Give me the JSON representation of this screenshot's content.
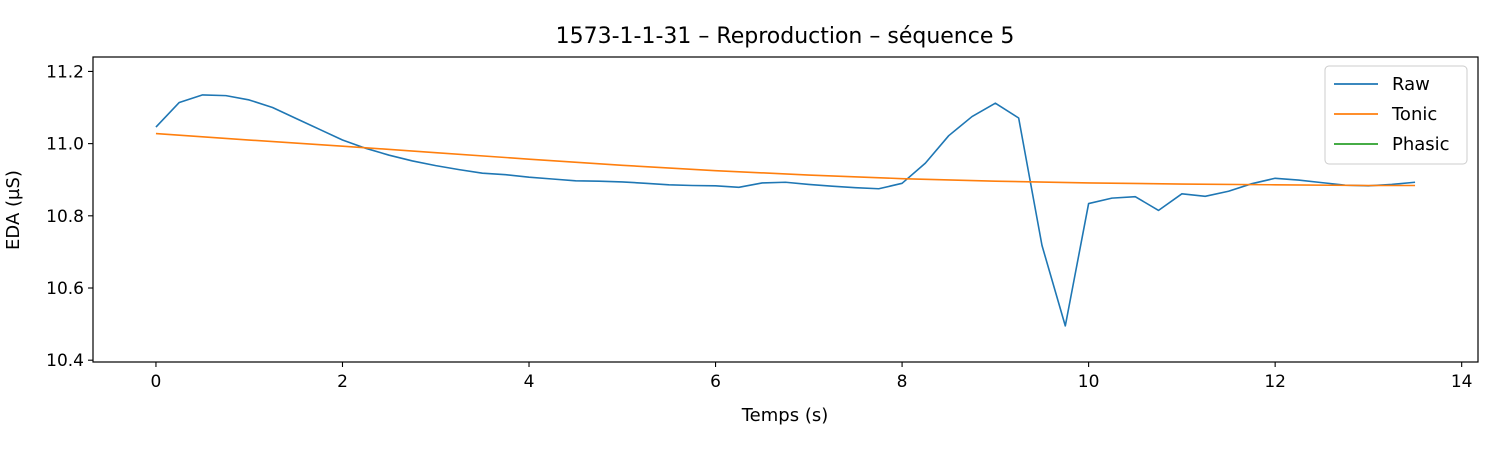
{
  "chart_data": {
    "type": "line",
    "title": "1573-1-1-31 – Reproduction – séquence 5",
    "xlabel": "Temps (s)",
    "ylabel": "EDA (µS)",
    "xlim": [
      -0.675,
      14.175
    ],
    "ylim": [
      10.395,
      11.24
    ],
    "x_ticks": [
      0,
      2,
      4,
      6,
      8,
      10,
      12,
      14
    ],
    "x_tick_labels": [
      "0",
      "2",
      "4",
      "6",
      "8",
      "10",
      "12",
      "14"
    ],
    "y_ticks": [
      10.4,
      10.6,
      10.8,
      11.0,
      11.2
    ],
    "y_tick_labels": [
      "10.4",
      "10.6",
      "10.8",
      "11.0",
      "11.2"
    ],
    "grid": false,
    "legend_position": "top-right",
    "series": [
      {
        "name": "Raw",
        "color": "#1f77b4",
        "x": [
          0,
          0.25,
          0.5,
          0.75,
          1.0,
          1.25,
          1.5,
          1.75,
          2.0,
          2.25,
          2.5,
          2.75,
          3.0,
          3.25,
          3.5,
          3.75,
          4.0,
          4.25,
          4.5,
          4.75,
          5.0,
          5.25,
          5.5,
          5.75,
          6.0,
          6.25,
          6.5,
          6.75,
          7.0,
          7.25,
          7.5,
          7.75,
          8.0,
          8.25,
          8.5,
          8.75,
          9.0,
          9.25,
          9.5,
          9.75,
          10.0,
          10.25,
          10.5,
          10.75,
          11.0,
          11.25,
          11.5,
          11.75,
          12.0,
          12.25,
          12.5,
          12.75,
          13.0,
          13.25,
          13.5
        ],
        "y": [
          11.046,
          11.114,
          11.135,
          11.133,
          11.121,
          11.1,
          11.07,
          11.04,
          11.01,
          10.987,
          10.968,
          10.952,
          10.939,
          10.928,
          10.918,
          10.914,
          10.907,
          10.902,
          10.897,
          10.896,
          10.894,
          10.89,
          10.886,
          10.884,
          10.883,
          10.879,
          10.891,
          10.893,
          10.887,
          10.882,
          10.878,
          10.875,
          10.89,
          10.946,
          11.022,
          11.075,
          11.112,
          11.071,
          10.718,
          10.495,
          10.834,
          10.849,
          10.853,
          10.815,
          10.861,
          10.854,
          10.868,
          10.889,
          10.904,
          10.899,
          10.892,
          10.885,
          10.883,
          10.887,
          10.893
        ]
      },
      {
        "name": "Tonic",
        "color": "#ff7f0e",
        "x": [
          0,
          1,
          2,
          3,
          4,
          5,
          6,
          7,
          8,
          9,
          10,
          11,
          12,
          13,
          13.5
        ],
        "y": [
          11.028,
          11.01,
          10.993,
          10.975,
          10.957,
          10.94,
          10.925,
          10.913,
          10.903,
          10.896,
          10.891,
          10.888,
          10.886,
          10.884,
          10.884
        ]
      },
      {
        "name": "Phasic",
        "color": "#2ca02c",
        "x": [],
        "y": []
      }
    ]
  }
}
